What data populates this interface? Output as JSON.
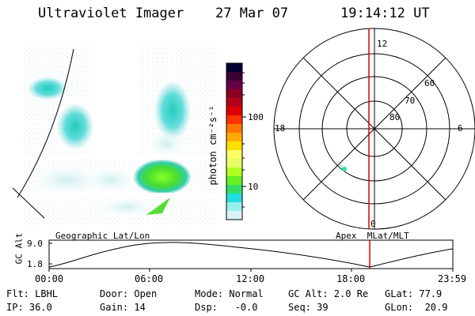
{
  "header": {
    "instrument": "Ultraviolet Imager",
    "date": "27 Mar 07",
    "time": "19:14:12 UT"
  },
  "colorbar": {
    "label": "photon cm⁻²s⁻¹",
    "ticks": [
      "100",
      "10"
    ],
    "colors": [
      "#000033",
      "#3a0033",
      "#660044",
      "#8b0022",
      "#b8001c",
      "#dd0000",
      "#ff3300",
      "#ff7700",
      "#ffaa00",
      "#ffe000",
      "#ffff66",
      "#e8ff66",
      "#b0ff22",
      "#66ee22",
      "#33dd66",
      "#22dddd",
      "#99eeee",
      "#d8f4f4"
    ]
  },
  "polar_plot": {
    "hours": {
      "noon": "12",
      "dusk": "18",
      "dawn": "6",
      "midnight": "0"
    },
    "latitudes": [
      "60",
      "70",
      "80"
    ]
  },
  "timeline": {
    "ylabel": "GC Alt",
    "ymax": "9.0",
    "ymin": "1.8",
    "left_title": "Geographic Lat/Lon",
    "right_title": "Apex  MLat/MLT",
    "xticks": [
      "00:00",
      "06:00",
      "12:00",
      "18:00",
      "23:59"
    ],
    "marker_time": "19:14",
    "marker_color": "#dd0000"
  },
  "status": {
    "flt": "Flt: LBHL",
    "ip": "IP: 36.0",
    "door": "Door: Open",
    "gain": "Gain: 14",
    "mode": "Mode: Normal",
    "dsp": "Dsp:   -0.0",
    "gcalt": "GC Alt: 2.0 Re",
    "seq": "Seq: 39",
    "glat": "GLat: 77.9",
    "glon": "GLon:  20.9"
  }
}
